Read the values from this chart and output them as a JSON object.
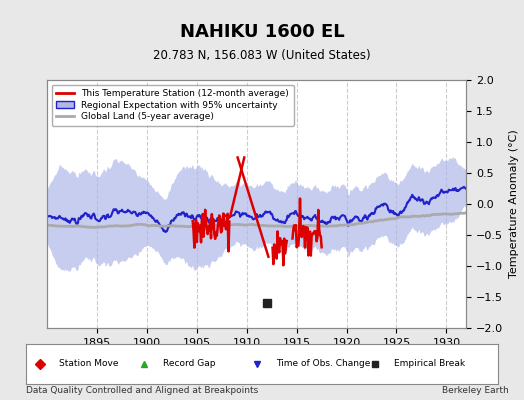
{
  "title": "NAHIKU 1600 EL",
  "subtitle": "20.783 N, 156.083 W (United States)",
  "ylabel": "Temperature Anomaly (°C)",
  "xlabel_bottom": "Data Quality Controlled and Aligned at Breakpoints",
  "credit": "Berkeley Earth",
  "ylim": [
    -2,
    2
  ],
  "xlim": [
    1890,
    1932
  ],
  "xticks": [
    1895,
    1900,
    1905,
    1910,
    1915,
    1920,
    1925,
    1930
  ],
  "yticks": [
    -2,
    -1.5,
    -1,
    -0.5,
    0,
    0.5,
    1,
    1.5,
    2
  ],
  "bg_color": "#e8e8e8",
  "plot_bg_color": "#ffffff",
  "regional_fill_color": "#b0b8e8",
  "regional_line_color": "#2222cc",
  "station_color": "#dd0000",
  "global_land_color": "#aaaaaa",
  "empirical_break_x": 1912.0,
  "empirical_break_y": -1.6,
  "legend_items": [
    {
      "label": "This Temperature Station (12-month average)",
      "color": "#dd0000",
      "lw": 2
    },
    {
      "label": "Regional Expectation with 95% uncertainty",
      "color": "#2222cc",
      "lw": 2
    },
    {
      "label": "Global Land (5-year average)",
      "color": "#aaaaaa",
      "lw": 2
    }
  ],
  "bottom_legend": [
    {
      "label": "Station Move",
      "color": "#dd0000",
      "marker": "D"
    },
    {
      "label": "Record Gap",
      "color": "#22aa22",
      "marker": "^"
    },
    {
      "label": "Time of Obs. Change",
      "color": "#2222cc",
      "marker": "v"
    },
    {
      "label": "Empirical Break",
      "color": "#222222",
      "marker": "s"
    }
  ]
}
